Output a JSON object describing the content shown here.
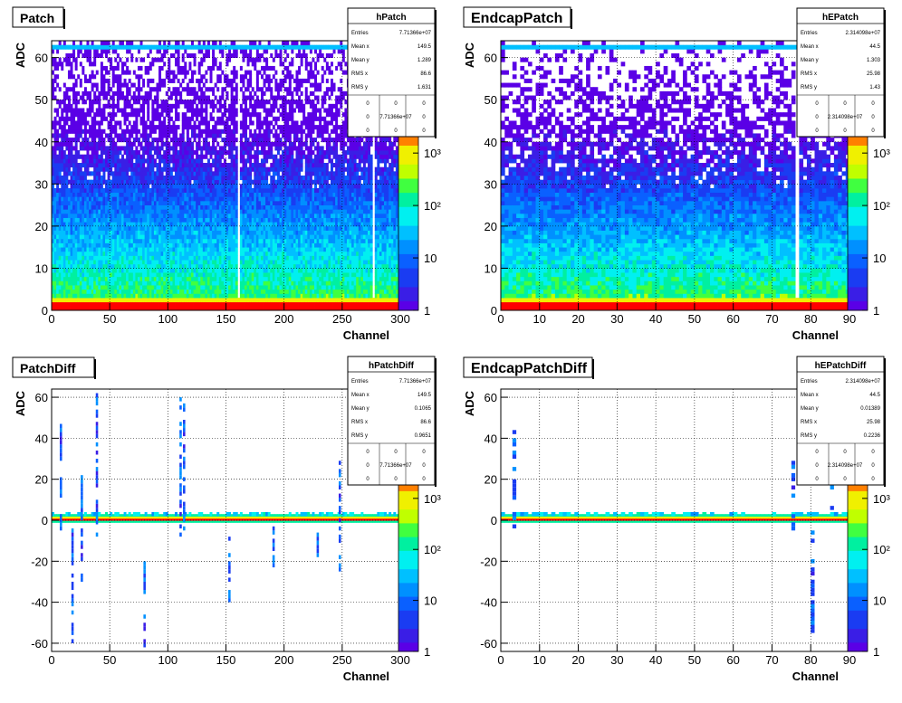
{
  "colors": {
    "palette": [
      "#5a00e6",
      "#3a1ee6",
      "#1a3cf2",
      "#0a60ff",
      "#0090ff",
      "#00c0ff",
      "#00f0f0",
      "#00f0a0",
      "#40ff40",
      "#c0ff00",
      "#f0f000",
      "#ff8000",
      "#ff0000"
    ],
    "frame": "#000000",
    "grid": "#000000"
  },
  "chart_data": [
    {
      "type": "heatmap",
      "title": "Patch",
      "xlabel": "Channel",
      "ylabel": "ADC",
      "xlim": [
        0,
        300
      ],
      "ylim": [
        0,
        64
      ],
      "x_ticks": [
        "0",
        "50",
        "100",
        "150",
        "200",
        "250",
        "300"
      ],
      "y_ticks": [
        "0",
        "10",
        "20",
        "30",
        "40",
        "50",
        "60"
      ],
      "z_scale": "log",
      "z_ticks": [
        "1",
        "10",
        "10²",
        "10³"
      ],
      "z_tick_values": [
        1,
        10,
        100,
        1000
      ],
      "grid": true,
      "stats": {
        "name": "hPatch",
        "rows": [
          [
            "Entries",
            "7.71366e+07"
          ],
          [
            "Mean x",
            "149.5"
          ],
          [
            "Mean y",
            "1.289"
          ],
          [
            "RMS x",
            "86.6"
          ],
          [
            "RMS y",
            "1.631"
          ]
        ],
        "grid": [
          [
            "0",
            "0",
            "0"
          ],
          [
            "0",
            "7.71366e+07",
            "0"
          ],
          [
            "0",
            "0",
            "0"
          ]
        ]
      }
    },
    {
      "type": "heatmap",
      "title": "EndcapPatch",
      "xlabel": "Channel",
      "ylabel": "ADC",
      "xlim": [
        0,
        90
      ],
      "ylim": [
        0,
        64
      ],
      "x_ticks": [
        "0",
        "10",
        "20",
        "30",
        "40",
        "50",
        "60",
        "70",
        "80",
        "90"
      ],
      "y_ticks": [
        "0",
        "10",
        "20",
        "30",
        "40",
        "50",
        "60"
      ],
      "z_scale": "log",
      "z_ticks": [
        "1",
        "10",
        "10²",
        "10³"
      ],
      "z_tick_values": [
        1,
        10,
        100,
        1000
      ],
      "grid": true,
      "stats": {
        "name": "hEPatch",
        "rows": [
          [
            "Entries",
            "2.314098e+07"
          ],
          [
            "Mean x",
            "44.5"
          ],
          [
            "Mean y",
            "1.303"
          ],
          [
            "RMS x",
            "25.98"
          ],
          [
            "RMS y",
            "1.43"
          ]
        ],
        "grid": [
          [
            "0",
            "0",
            "0"
          ],
          [
            "0",
            "2.314098e+07",
            "0"
          ],
          [
            "0",
            "0",
            "0"
          ]
        ]
      }
    },
    {
      "type": "heatmap",
      "title": "PatchDiff",
      "xlabel": "Channel",
      "ylabel": "ADC",
      "xlim": [
        0,
        300
      ],
      "ylim": [
        -64,
        64
      ],
      "x_ticks": [
        "0",
        "50",
        "100",
        "150",
        "200",
        "250",
        "300"
      ],
      "y_ticks": [
        "-60",
        "-40",
        "-20",
        "0",
        "20",
        "40",
        "60"
      ],
      "z_scale": "log",
      "z_ticks": [
        "1",
        "10",
        "10²",
        "10³"
      ],
      "z_tick_values": [
        1,
        10,
        100,
        1000
      ],
      "grid": true,
      "stats": {
        "name": "hPatchDiff",
        "rows": [
          [
            "Entries",
            "7.71366e+07"
          ],
          [
            "Mean x",
            "149.5"
          ],
          [
            "Mean y",
            "0.1065"
          ],
          [
            "RMS x",
            "86.6"
          ],
          [
            "RMS y",
            "0.9651"
          ]
        ],
        "grid": [
          [
            "0",
            "0",
            "0"
          ],
          [
            "0",
            "7.71366e+07",
            "0"
          ],
          [
            "0",
            "0",
            "0"
          ]
        ]
      }
    },
    {
      "type": "heatmap",
      "title": "EndcapPatchDiff",
      "xlabel": "Channel",
      "ylabel": "ADC",
      "xlim": [
        0,
        90
      ],
      "ylim": [
        -64,
        64
      ],
      "x_ticks": [
        "0",
        "10",
        "20",
        "30",
        "40",
        "50",
        "60",
        "70",
        "80",
        "90"
      ],
      "y_ticks": [
        "-60",
        "-40",
        "-20",
        "0",
        "20",
        "40",
        "60"
      ],
      "z_scale": "log",
      "z_ticks": [
        "1",
        "10",
        "10²",
        "10³"
      ],
      "z_tick_values": [
        1,
        10,
        100,
        1000
      ],
      "grid": true,
      "stats": {
        "name": "hEPatchDiff",
        "rows": [
          [
            "Entries",
            "2.314098e+07"
          ],
          [
            "Mean x",
            "44.5"
          ],
          [
            "Mean y",
            "0.01389"
          ],
          [
            "RMS x",
            "25.98"
          ],
          [
            "RMS y",
            "0.2236"
          ]
        ],
        "grid": [
          [
            "0",
            "0",
            "0"
          ],
          [
            "0",
            "2.314098e+07",
            "0"
          ],
          [
            "0",
            "0",
            "0"
          ]
        ]
      }
    }
  ]
}
